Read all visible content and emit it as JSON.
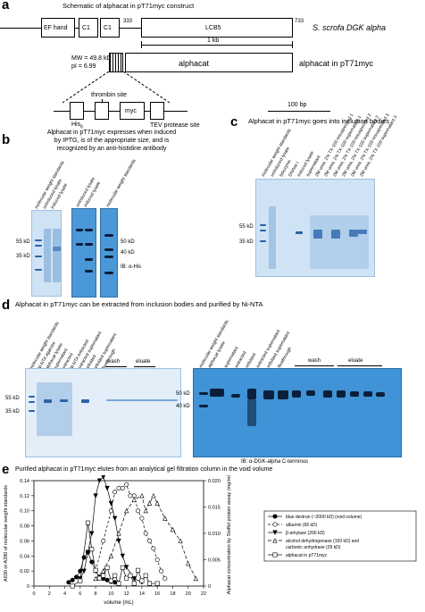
{
  "panel_a": {
    "letter": "a",
    "title": "Schematic of alphacat in pT71myc construct",
    "domains": [
      "EF hand",
      "C1",
      "C1",
      "LCB5"
    ],
    "pos_333": "333",
    "pos_733": "733",
    "species_label": "S. scrofa DGK alpha",
    "scale_1kb": "1 kb",
    "mw": "MW = 49.8 kD",
    "pi": "pI = 6.99",
    "alphacat": "alphacat",
    "alphacat_label": "alphacat in pT71myc",
    "thrombin": "thrombin site",
    "his": "His",
    "his_sub": "6",
    "myc": "myc",
    "tev": "TEV protease site",
    "scale_100bp": "100 bp"
  },
  "panel_b": {
    "letter": "b",
    "caption_lines": [
      "Alphacat in pT71myc expresses when induced",
      "by IPTG, is of the appropriate size, and is",
      "recognized by an anti-histidine antibody"
    ],
    "lanes_gel1": [
      "molecular weight standards",
      "uninduced lysate",
      "induced lysate"
    ],
    "lanes_gel2": [
      "uninduced lysate",
      "induced lysate",
      "molecular weight standards"
    ],
    "mw_left": [
      "55 kD",
      "35 kD"
    ],
    "mw_right": [
      "50 kD",
      "40 kD"
    ],
    "ib_label": "IB: α-His"
  },
  "panel_c": {
    "letter": "c",
    "title": "Alphacat in pT71myc goes into inclusion bodies",
    "lanes": [
      "molecular weight standards",
      "uninduced lysate",
      "lysozyme",
      "DNAse I",
      "induced lysate",
      "supernatant",
      "2M urea, 2% TX-100 resuspended 1",
      "2M urea, 2% TX-100 supernatant 1",
      "2M urea, 2% TX-100 resuspended 2",
      "2M urea, 2% TX-100 supernatant 2",
      "2M urea, 2% TX-100 resuspended 3",
      "2M urea, 2% TX-100 supernatant 3"
    ],
    "mw": [
      "55 kD",
      "35 kD"
    ]
  },
  "panel_d": {
    "letter": "d",
    "title": "Alphacat in pT71myc can be extracted from inclusion bodies and purified by Ni-NTA",
    "lanes_left": [
      "molecular weight standards",
      "Ni-NTA agarose",
      "alphacat lysate",
      "supernatant",
      "extracted",
      "Ni-NTA extracted",
      "extracted supernatant",
      "refolded",
      "refolded supernatant",
      "flowthrough"
    ],
    "wash": "wash",
    "eluate": "eluate",
    "mw_left": [
      "55 kD",
      "35 kD"
    ],
    "lanes_right": [
      "molecular weight standards",
      "alphacat lysate",
      "supernatant",
      "extracted",
      "refolded",
      "extracted supernatant",
      "refolded supernatant",
      "flowthrough"
    ],
    "mw_right": [
      "50 kD",
      "40 kD"
    ],
    "ib_label": "IB: α-DGK-alpha C-terminus"
  },
  "panel_e": {
    "letter": "e",
    "title": "Purified alphacat in pT71myc elutes from an analytical gel filtration column in the void volume"
  },
  "chart_data": {
    "type": "line",
    "xlabel": "volume (mL)",
    "ylabel": "A630 or A280 of molecular weight standards",
    "y2label": "Alphacat concentration by Stoffel protein assay (mg/mL)",
    "xlim": [
      0,
      22
    ],
    "ylim": [
      0,
      0.14
    ],
    "y2lim": [
      0,
      0.02
    ],
    "xticks": [
      "0",
      "2",
      "4",
      "6",
      "8",
      "10",
      "12",
      "14",
      "16",
      "18",
      "20",
      "22"
    ],
    "yticks": [
      "0",
      "0.02",
      "0.04",
      "0.06",
      "0.08",
      "0.10",
      "0.12",
      "0.14"
    ],
    "y2ticks": [
      "0",
      "0.005",
      "0.010",
      "0.015",
      "0.020"
    ],
    "series": [
      {
        "name": "blue dextran (~2000 kD) (void volume)",
        "marker": "filled-circle",
        "axis": "left",
        "x": [
          4.5,
          5,
          5.5,
          6,
          6.5,
          7,
          7.5,
          8,
          8.5,
          9,
          9.5,
          10,
          10.5,
          11
        ],
        "y": [
          0.005,
          0.008,
          0.012,
          0.02,
          0.038,
          0.045,
          0.032,
          0.02,
          0.012,
          0.01,
          0.008,
          0.006,
          0.005,
          0.004
        ]
      },
      {
        "name": "albumin (66 kD)",
        "marker": "open-circle",
        "axis": "left",
        "x": [
          8,
          9,
          10,
          10.5,
          11,
          11.5,
          12,
          12.5,
          13,
          13.5,
          14,
          14.5,
          15,
          15.5,
          16,
          16.5,
          17
        ],
        "y": [
          0.02,
          0.06,
          0.1,
          0.125,
          0.13,
          0.13,
          0.135,
          0.12,
          0.12,
          0.1,
          0.09,
          0.07,
          0.06,
          0.05,
          0.035,
          0.02,
          0.01
        ]
      },
      {
        "name": "β-amylase (200 kD)",
        "marker": "filled-triangle",
        "axis": "left",
        "x": [
          6,
          6.5,
          7,
          7.5,
          8,
          8.5,
          9,
          9.5,
          10,
          10.5,
          11,
          11.5,
          12,
          13,
          14
        ],
        "y": [
          0.01,
          0.02,
          0.045,
          0.07,
          0.12,
          0.14,
          0.145,
          0.13,
          0.11,
          0.09,
          0.06,
          0.04,
          0.025,
          0.01,
          0.005
        ]
      },
      {
        "name": "alcohol dehydrogenase (150 kD) and carbonic anhydrase (29 kD)",
        "marker": "open-triangle",
        "axis": "left",
        "x": [
          8,
          9,
          10,
          11,
          12,
          13,
          14,
          14.5,
          15,
          15.5,
          16,
          17,
          18,
          19,
          20,
          21
        ],
        "y": [
          0.01,
          0.02,
          0.04,
          0.07,
          0.1,
          0.115,
          0.12,
          0.1,
          0.11,
          0.12,
          0.11,
          0.09,
          0.075,
          0.06,
          0.03,
          0.01
        ]
      },
      {
        "name": "alphacat in pT71myc",
        "marker": "open-square",
        "axis": "right",
        "x": [
          5,
          6,
          7,
          7.5,
          8,
          8.5,
          9,
          9.5,
          10,
          10.5,
          11,
          11.5,
          12,
          12.5,
          13,
          13.5,
          14,
          14.5,
          15,
          16
        ],
        "y": [
          0.0,
          0.001,
          0.012,
          0.007,
          0.003,
          0.0015,
          0.002,
          0.0035,
          0.001,
          0.002,
          0.0005,
          0.0035,
          0.0015,
          0.002,
          0.0005,
          0.003,
          0.001,
          0.002,
          0.0005,
          0.0005
        ]
      }
    ]
  }
}
